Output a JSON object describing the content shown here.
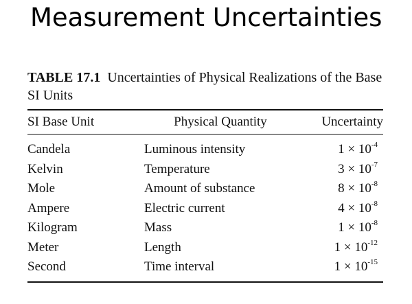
{
  "slide": {
    "title": "Measurement Uncertainties"
  },
  "table": {
    "label": "TABLE 17.1",
    "caption": "Uncertainties of Physical Realizations of the Base SI Units",
    "headers": [
      "SI Base Unit",
      "Physical Quantity",
      "Uncertainty"
    ],
    "rows": [
      {
        "unit": "Candela",
        "quantity": "Luminous intensity",
        "mantissa": "1 × 10",
        "exponent": "-4"
      },
      {
        "unit": "Kelvin",
        "quantity": "Temperature",
        "mantissa": "3 × 10",
        "exponent": "-7"
      },
      {
        "unit": "Mole",
        "quantity": "Amount of substance",
        "mantissa": "8 × 10",
        "exponent": "-8"
      },
      {
        "unit": "Ampere",
        "quantity": "Electric current",
        "mantissa": "4 × 10",
        "exponent": "-8"
      },
      {
        "unit": "Kilogram",
        "quantity": "Mass",
        "mantissa": "1 × 10",
        "exponent": "-8"
      },
      {
        "unit": "Meter",
        "quantity": "Length",
        "mantissa": "1 × 10",
        "exponent": "-12"
      },
      {
        "unit": "Second",
        "quantity": "Time interval",
        "mantissa": "1 × 10",
        "exponent": "-15"
      }
    ]
  }
}
